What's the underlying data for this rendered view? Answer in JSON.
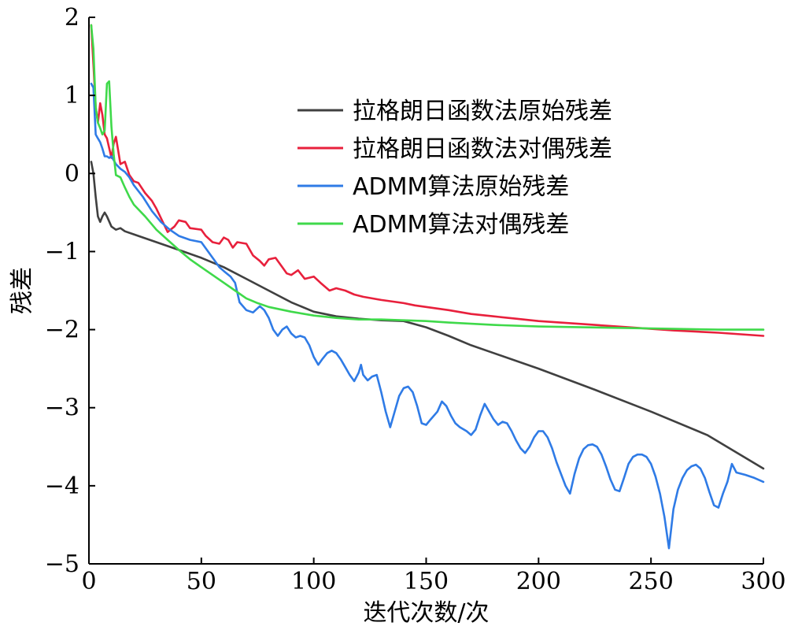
{
  "chart_data": {
    "type": "line",
    "xlabel": "迭代次数/次",
    "ylabel": "残差",
    "xlim": [
      0,
      300
    ],
    "ylim": [
      -5,
      2
    ],
    "xticks": [
      0,
      50,
      100,
      150,
      200,
      250,
      300
    ],
    "yticks": [
      2,
      1,
      0,
      -1,
      -2,
      -3,
      -4,
      -5
    ],
    "ytick_labels": [
      "2",
      "1",
      "0",
      "−1",
      "−2",
      "−3",
      "−4",
      "−5"
    ],
    "grid": false,
    "legend_position": "top-right",
    "series": [
      {
        "name": "拉格朗日函数法原始残差",
        "color": "#404040",
        "points": [
          [
            1,
            0.15
          ],
          [
            2,
            0.0
          ],
          [
            3,
            -0.3
          ],
          [
            4,
            -0.55
          ],
          [
            5,
            -0.62
          ],
          [
            6,
            -0.55
          ],
          [
            7,
            -0.5
          ],
          [
            8,
            -0.55
          ],
          [
            10,
            -0.68
          ],
          [
            12,
            -0.72
          ],
          [
            14,
            -0.7
          ],
          [
            16,
            -0.74
          ],
          [
            20,
            -0.78
          ],
          [
            30,
            -0.88
          ],
          [
            40,
            -0.98
          ],
          [
            50,
            -1.08
          ],
          [
            60,
            -1.2
          ],
          [
            70,
            -1.35
          ],
          [
            80,
            -1.5
          ],
          [
            90,
            -1.65
          ],
          [
            100,
            -1.77
          ],
          [
            110,
            -1.83
          ],
          [
            120,
            -1.86
          ],
          [
            130,
            -1.88
          ],
          [
            140,
            -1.89
          ],
          [
            150,
            -1.97
          ],
          [
            160,
            -2.08
          ],
          [
            170,
            -2.2
          ],
          [
            180,
            -2.3
          ],
          [
            200,
            -2.5
          ],
          [
            225,
            -2.77
          ],
          [
            250,
            -3.05
          ],
          [
            275,
            -3.35
          ],
          [
            300,
            -3.78
          ]
        ]
      },
      {
        "name": "拉格朗日函数法对偶残差",
        "color": "#e8203c",
        "points": [
          [
            1,
            1.9
          ],
          [
            2,
            1.4
          ],
          [
            3,
            0.85
          ],
          [
            4,
            0.65
          ],
          [
            5,
            0.9
          ],
          [
            6,
            0.75
          ],
          [
            7,
            0.5
          ],
          [
            8,
            0.45
          ],
          [
            10,
            0.2
          ],
          [
            11,
            0.38
          ],
          [
            12,
            0.47
          ],
          [
            14,
            0.12
          ],
          [
            16,
            0.15
          ],
          [
            18,
            -0.02
          ],
          [
            20,
            -0.1
          ],
          [
            22,
            -0.12
          ],
          [
            25,
            -0.25
          ],
          [
            28,
            -0.35
          ],
          [
            30,
            -0.45
          ],
          [
            35,
            -0.75
          ],
          [
            38,
            -0.68
          ],
          [
            40,
            -0.6
          ],
          [
            43,
            -0.62
          ],
          [
            45,
            -0.7
          ],
          [
            50,
            -0.72
          ],
          [
            52,
            -0.8
          ],
          [
            55,
            -0.88
          ],
          [
            58,
            -0.9
          ],
          [
            60,
            -0.82
          ],
          [
            62,
            -0.85
          ],
          [
            64,
            -0.95
          ],
          [
            66,
            -0.88
          ],
          [
            70,
            -0.9
          ],
          [
            73,
            -1.05
          ],
          [
            76,
            -1.12
          ],
          [
            78,
            -1.18
          ],
          [
            80,
            -1.1
          ],
          [
            83,
            -1.08
          ],
          [
            86,
            -1.2
          ],
          [
            88,
            -1.28
          ],
          [
            90,
            -1.3
          ],
          [
            93,
            -1.24
          ],
          [
            96,
            -1.35
          ],
          [
            100,
            -1.32
          ],
          [
            103,
            -1.4
          ],
          [
            107,
            -1.5
          ],
          [
            110,
            -1.47
          ],
          [
            114,
            -1.5
          ],
          [
            118,
            -1.55
          ],
          [
            122,
            -1.58
          ],
          [
            126,
            -1.6
          ],
          [
            130,
            -1.62
          ],
          [
            135,
            -1.64
          ],
          [
            140,
            -1.66
          ],
          [
            145,
            -1.69
          ],
          [
            150,
            -1.71
          ],
          [
            160,
            -1.75
          ],
          [
            170,
            -1.8
          ],
          [
            180,
            -1.83
          ],
          [
            190,
            -1.86
          ],
          [
            200,
            -1.89
          ],
          [
            220,
            -1.93
          ],
          [
            240,
            -1.97
          ],
          [
            260,
            -2.01
          ],
          [
            280,
            -2.04
          ],
          [
            300,
            -2.08
          ]
        ]
      },
      {
        "name": "ADMM算法原始残差",
        "color": "#2f7be6",
        "points": [
          [
            1,
            1.15
          ],
          [
            2,
            1.1
          ],
          [
            3,
            0.5
          ],
          [
            4,
            0.45
          ],
          [
            5,
            0.4
          ],
          [
            6,
            0.32
          ],
          [
            7,
            0.22
          ],
          [
            8,
            0.22
          ],
          [
            9,
            0.2
          ],
          [
            10,
            0.22
          ],
          [
            12,
            0.12
          ],
          [
            14,
            0.06
          ],
          [
            16,
            0.02
          ],
          [
            18,
            -0.05
          ],
          [
            20,
            -0.15
          ],
          [
            24,
            -0.3
          ],
          [
            28,
            -0.48
          ],
          [
            32,
            -0.62
          ],
          [
            36,
            -0.72
          ],
          [
            40,
            -0.8
          ],
          [
            45,
            -0.85
          ],
          [
            50,
            -0.88
          ],
          [
            53,
            -1.0
          ],
          [
            56,
            -1.12
          ],
          [
            58,
            -1.2
          ],
          [
            60,
            -1.25
          ],
          [
            63,
            -1.32
          ],
          [
            65,
            -1.4
          ],
          [
            67,
            -1.65
          ],
          [
            70,
            -1.75
          ],
          [
            73,
            -1.78
          ],
          [
            76,
            -1.7
          ],
          [
            78,
            -1.75
          ],
          [
            80,
            -1.85
          ],
          [
            82,
            -2.0
          ],
          [
            84,
            -2.08
          ],
          [
            86,
            -2.0
          ],
          [
            88,
            -1.96
          ],
          [
            90,
            -2.05
          ],
          [
            92,
            -2.1
          ],
          [
            94,
            -2.08
          ],
          [
            96,
            -2.1
          ],
          [
            98,
            -2.2
          ],
          [
            100,
            -2.35
          ],
          [
            102,
            -2.45
          ],
          [
            104,
            -2.37
          ],
          [
            106,
            -2.3
          ],
          [
            108,
            -2.27
          ],
          [
            110,
            -2.3
          ],
          [
            112,
            -2.38
          ],
          [
            114,
            -2.48
          ],
          [
            116,
            -2.58
          ],
          [
            118,
            -2.66
          ],
          [
            120,
            -2.55
          ],
          [
            121,
            -2.45
          ],
          [
            122,
            -2.58
          ],
          [
            124,
            -2.65
          ],
          [
            126,
            -2.6
          ],
          [
            128,
            -2.58
          ],
          [
            130,
            -2.8
          ],
          [
            132,
            -3.05
          ],
          [
            134,
            -3.25
          ],
          [
            136,
            -3.05
          ],
          [
            138,
            -2.85
          ],
          [
            140,
            -2.75
          ],
          [
            142,
            -2.73
          ],
          [
            144,
            -2.8
          ],
          [
            146,
            -2.98
          ],
          [
            148,
            -3.2
          ],
          [
            150,
            -3.22
          ],
          [
            152,
            -3.15
          ],
          [
            155,
            -3.05
          ],
          [
            157,
            -2.92
          ],
          [
            159,
            -2.98
          ],
          [
            161,
            -3.1
          ],
          [
            163,
            -3.2
          ],
          [
            165,
            -3.25
          ],
          [
            168,
            -3.3
          ],
          [
            170,
            -3.35
          ],
          [
            172,
            -3.28
          ],
          [
            174,
            -3.1
          ],
          [
            176,
            -2.95
          ],
          [
            178,
            -3.05
          ],
          [
            180,
            -3.15
          ],
          [
            182,
            -3.22
          ],
          [
            184,
            -3.18
          ],
          [
            186,
            -3.2
          ],
          [
            188,
            -3.3
          ],
          [
            190,
            -3.42
          ],
          [
            192,
            -3.52
          ],
          [
            194,
            -3.58
          ],
          [
            196,
            -3.5
          ],
          [
            198,
            -3.38
          ],
          [
            200,
            -3.3
          ],
          [
            202,
            -3.3
          ],
          [
            204,
            -3.38
          ],
          [
            206,
            -3.52
          ],
          [
            208,
            -3.7
          ],
          [
            210,
            -3.85
          ],
          [
            212,
            -4.0
          ],
          [
            214,
            -4.1
          ],
          [
            216,
            -3.85
          ],
          [
            218,
            -3.65
          ],
          [
            220,
            -3.53
          ],
          [
            222,
            -3.48
          ],
          [
            224,
            -3.47
          ],
          [
            226,
            -3.5
          ],
          [
            228,
            -3.6
          ],
          [
            230,
            -3.75
          ],
          [
            232,
            -3.92
          ],
          [
            234,
            -4.05
          ],
          [
            236,
            -4.07
          ],
          [
            238,
            -3.9
          ],
          [
            240,
            -3.72
          ],
          [
            242,
            -3.63
          ],
          [
            244,
            -3.6
          ],
          [
            246,
            -3.6
          ],
          [
            248,
            -3.63
          ],
          [
            250,
            -3.72
          ],
          [
            252,
            -3.88
          ],
          [
            254,
            -4.1
          ],
          [
            256,
            -4.4
          ],
          [
            258,
            -4.8
          ],
          [
            260,
            -4.3
          ],
          [
            262,
            -4.05
          ],
          [
            264,
            -3.9
          ],
          [
            266,
            -3.8
          ],
          [
            268,
            -3.75
          ],
          [
            270,
            -3.73
          ],
          [
            272,
            -3.78
          ],
          [
            274,
            -3.9
          ],
          [
            276,
            -4.08
          ],
          [
            278,
            -4.25
          ],
          [
            280,
            -4.28
          ],
          [
            282,
            -4.1
          ],
          [
            284,
            -3.95
          ],
          [
            286,
            -3.72
          ],
          [
            288,
            -3.83
          ],
          [
            292,
            -3.86
          ],
          [
            296,
            -3.9
          ],
          [
            300,
            -3.95
          ]
        ]
      },
      {
        "name": "ADMM算法对偶残差",
        "color": "#3fd94a",
        "points": [
          [
            1,
            1.9
          ],
          [
            2,
            1.6
          ],
          [
            3,
            0.85
          ],
          [
            4,
            0.65
          ],
          [
            5,
            0.58
          ],
          [
            6,
            0.5
          ],
          [
            7,
            0.55
          ],
          [
            8,
            1.15
          ],
          [
            9,
            1.18
          ],
          [
            10,
            0.6
          ],
          [
            11,
            0.25
          ],
          [
            12,
            -0.02
          ],
          [
            14,
            -0.05
          ],
          [
            16,
            -0.18
          ],
          [
            18,
            -0.3
          ],
          [
            20,
            -0.4
          ],
          [
            25,
            -0.55
          ],
          [
            30,
            -0.72
          ],
          [
            35,
            -0.85
          ],
          [
            40,
            -0.98
          ],
          [
            45,
            -1.1
          ],
          [
            50,
            -1.2
          ],
          [
            55,
            -1.3
          ],
          [
            60,
            -1.4
          ],
          [
            65,
            -1.5
          ],
          [
            70,
            -1.6
          ],
          [
            75,
            -1.66
          ],
          [
            80,
            -1.71
          ],
          [
            90,
            -1.77
          ],
          [
            100,
            -1.82
          ],
          [
            110,
            -1.85
          ],
          [
            120,
            -1.87
          ],
          [
            130,
            -1.87
          ],
          [
            140,
            -1.88
          ],
          [
            150,
            -1.89
          ],
          [
            160,
            -1.91
          ],
          [
            180,
            -1.94
          ],
          [
            200,
            -1.96
          ],
          [
            220,
            -1.97
          ],
          [
            240,
            -1.98
          ],
          [
            260,
            -1.99
          ],
          [
            280,
            -2.0
          ],
          [
            300,
            -2.0
          ]
        ]
      }
    ]
  }
}
